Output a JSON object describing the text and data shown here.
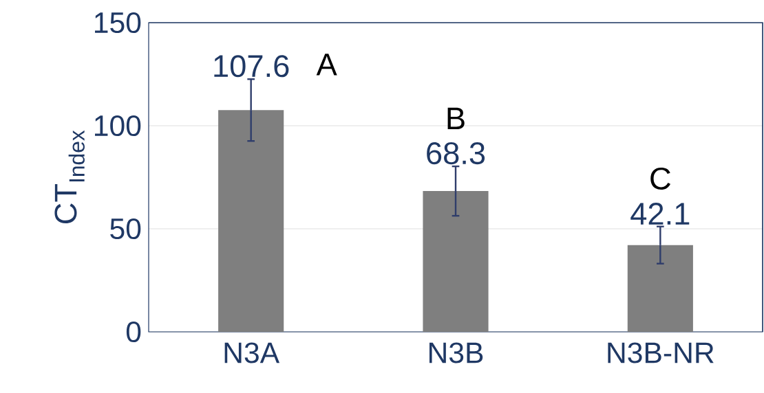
{
  "chart_data": {
    "type": "bar",
    "ylabel": "CT$_{Index}$",
    "categories": [
      "N3A",
      "N3B",
      "N3B-NR"
    ],
    "values": [
      107.6,
      68.3,
      42.1
    ],
    "errors": [
      15,
      12,
      9
    ],
    "color": "#7f7f7f",
    "ylim": [
      0,
      150
    ],
    "yticks": [
      0,
      50,
      100,
      150
    ],
    "grid": "y",
    "data_labels": true,
    "annotations": [
      "A",
      "B",
      "C"
    ]
  }
}
